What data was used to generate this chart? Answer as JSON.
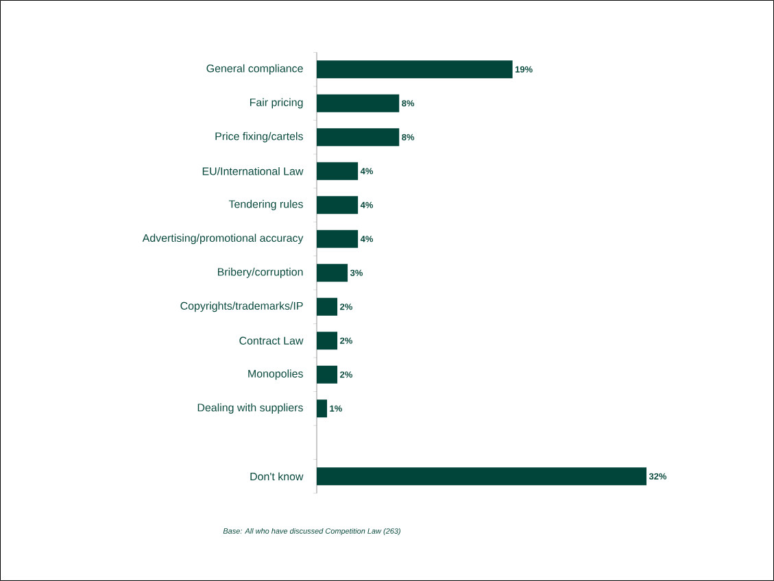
{
  "chart_data": {
    "type": "bar",
    "orientation": "horizontal",
    "color": "#00443a",
    "categories": [
      "General compliance",
      "Fair pricing",
      "Price fixing/cartels",
      "EU/International Law",
      "Tendering rules",
      "Advertising/promotional accuracy",
      "Bribery/corruption",
      "Copyrights/trademarks/IP",
      "Contract Law",
      "Monopolies",
      "Dealing with suppliers",
      null,
      "Don't know"
    ],
    "values": [
      19,
      8,
      8,
      4,
      4,
      4,
      3,
      2,
      2,
      2,
      1,
      null,
      32
    ],
    "value_labels": [
      "19%",
      "8%",
      "8%",
      "4%",
      "4%",
      "4%",
      "3%",
      "2%",
      "2%",
      "2%",
      "1%",
      null,
      "32%"
    ],
    "annotations": [
      "Base: All who have discussed Competition Law (263)"
    ]
  }
}
